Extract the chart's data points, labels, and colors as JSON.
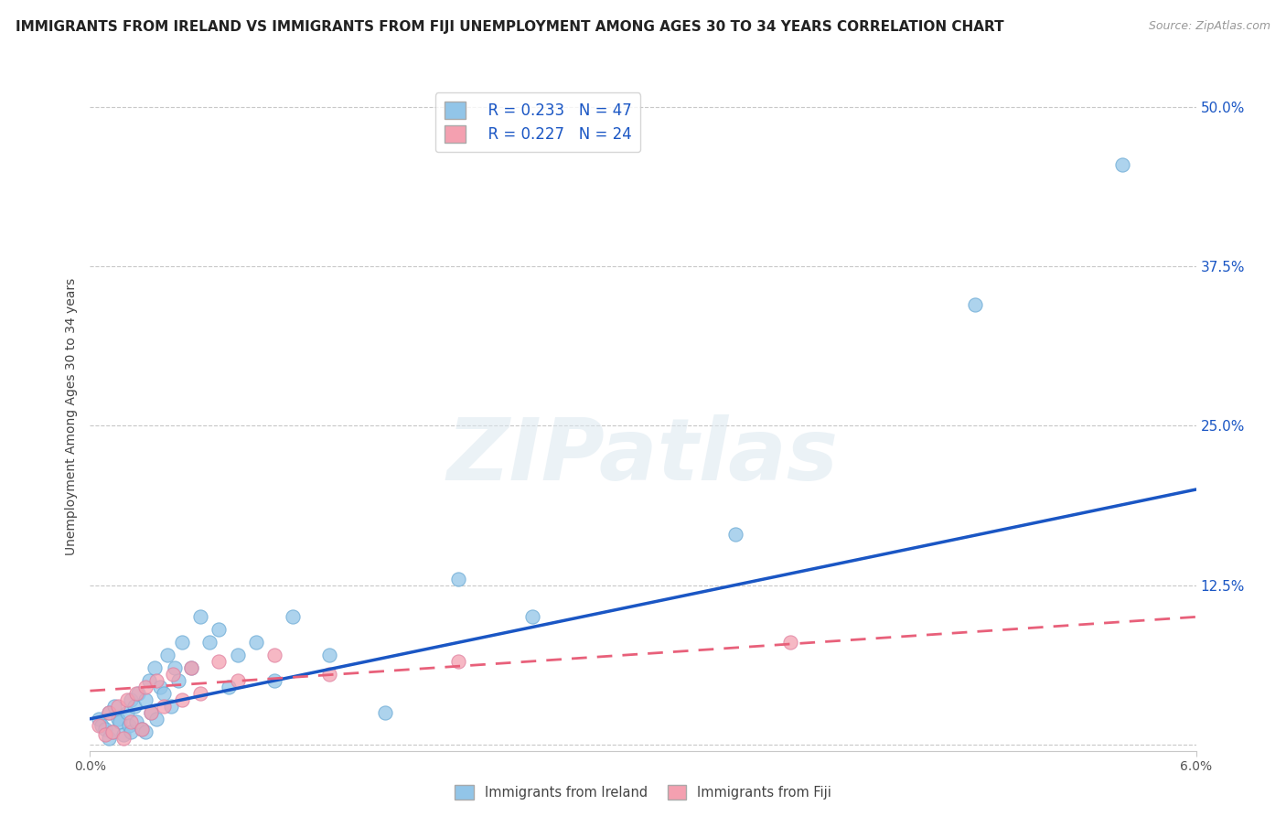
{
  "title": "IMMIGRANTS FROM IRELAND VS IMMIGRANTS FROM FIJI UNEMPLOYMENT AMONG AGES 30 TO 34 YEARS CORRELATION CHART",
  "source": "Source: ZipAtlas.com",
  "ylabel": "Unemployment Among Ages 30 to 34 years",
  "xlim": [
    0.0,
    0.06
  ],
  "ylim": [
    -0.005,
    0.52
  ],
  "yticks": [
    0.0,
    0.125,
    0.25,
    0.375,
    0.5
  ],
  "right_yticklabels": [
    "",
    "12.5%",
    "25.0%",
    "37.5%",
    "50.0%"
  ],
  "ireland_R": 0.233,
  "ireland_N": 47,
  "fiji_R": 0.227,
  "fiji_N": 24,
  "ireland_color": "#92c5e8",
  "fiji_color": "#f4a0b0",
  "ireland_line_color": "#1a56c4",
  "fiji_line_color": "#e8607a",
  "ireland_line_intercept": 0.02,
  "ireland_line_slope_per_unit": 3.0,
  "fiji_line_intercept": 0.04,
  "fiji_line_slope_per_unit": 1.0,
  "watermark_text": "ZIPatlas",
  "background_color": "#ffffff",
  "grid_color": "#c8c8c8",
  "title_fontsize": 11,
  "axis_label_fontsize": 10,
  "tick_fontsize": 10,
  "source_fontsize": 9,
  "ireland_scatter_x": [
    0.0005,
    0.0006,
    0.0008,
    0.001,
    0.001,
    0.0012,
    0.0013,
    0.0015,
    0.0016,
    0.0018,
    0.002,
    0.0021,
    0.0022,
    0.0022,
    0.0024,
    0.0025,
    0.0026,
    0.0028,
    0.003,
    0.003,
    0.0032,
    0.0033,
    0.0035,
    0.0036,
    0.0038,
    0.004,
    0.0042,
    0.0044,
    0.0046,
    0.0048,
    0.005,
    0.0055,
    0.006,
    0.0065,
    0.007,
    0.0075,
    0.008,
    0.009,
    0.01,
    0.011,
    0.013,
    0.016,
    0.02,
    0.024,
    0.035,
    0.048,
    0.056
  ],
  "ireland_scatter_y": [
    0.02,
    0.015,
    0.012,
    0.025,
    0.005,
    0.01,
    0.03,
    0.02,
    0.018,
    0.008,
    0.025,
    0.015,
    0.035,
    0.01,
    0.03,
    0.018,
    0.04,
    0.012,
    0.035,
    0.01,
    0.05,
    0.025,
    0.06,
    0.02,
    0.045,
    0.04,
    0.07,
    0.03,
    0.06,
    0.05,
    0.08,
    0.06,
    0.1,
    0.08,
    0.09,
    0.045,
    0.07,
    0.08,
    0.05,
    0.1,
    0.07,
    0.025,
    0.13,
    0.1,
    0.165,
    0.345,
    0.455
  ],
  "fiji_scatter_x": [
    0.0005,
    0.0008,
    0.001,
    0.0012,
    0.0015,
    0.0018,
    0.002,
    0.0022,
    0.0025,
    0.0028,
    0.003,
    0.0033,
    0.0036,
    0.004,
    0.0045,
    0.005,
    0.0055,
    0.006,
    0.007,
    0.008,
    0.01,
    0.013,
    0.02,
    0.038
  ],
  "fiji_scatter_y": [
    0.015,
    0.008,
    0.025,
    0.01,
    0.03,
    0.005,
    0.035,
    0.018,
    0.04,
    0.012,
    0.045,
    0.025,
    0.05,
    0.03,
    0.055,
    0.035,
    0.06,
    0.04,
    0.065,
    0.05,
    0.07,
    0.055,
    0.065,
    0.08
  ]
}
